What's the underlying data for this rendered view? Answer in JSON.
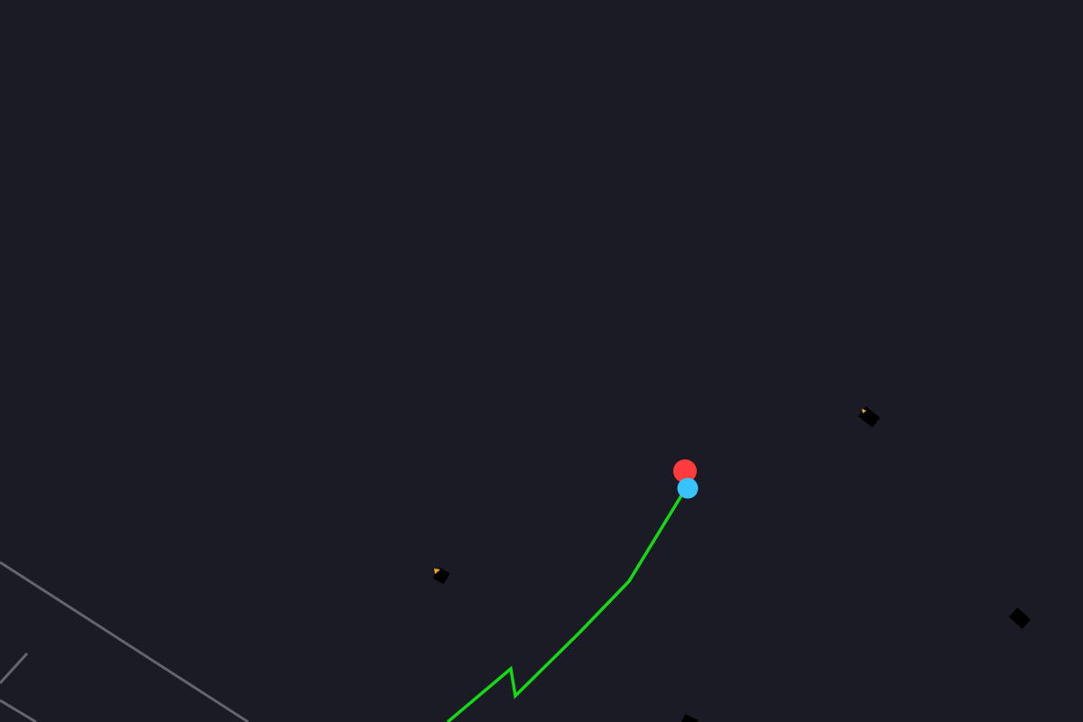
{
  "scene": {
    "background_color": "#1b1b26",
    "road_color": "#64646a",
    "path_color": "#16d916",
    "target_marker": {
      "name": "target-marker",
      "color": "#ff3b3b"
    },
    "player_marker": {
      "name": "player-marker",
      "color": "#38c3ff"
    },
    "obstacle_color": "#000000",
    "obstacle_highlight_color": "#f5a623",
    "obstacles": [
      {
        "name": "obstacle-1",
        "has_highlight": true
      },
      {
        "name": "obstacle-2",
        "has_highlight": true
      },
      {
        "name": "obstacle-3",
        "has_highlight": false
      },
      {
        "name": "obstacle-4",
        "has_highlight": false
      }
    ]
  }
}
